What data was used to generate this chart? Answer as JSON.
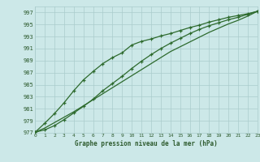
{
  "x": [
    0,
    1,
    2,
    3,
    4,
    5,
    6,
    7,
    8,
    9,
    10,
    11,
    12,
    13,
    14,
    15,
    16,
    17,
    18,
    19,
    20,
    21,
    22,
    23
  ],
  "line_upper": [
    977.1,
    978.6,
    980.2,
    982.0,
    984.0,
    985.8,
    987.2,
    988.5,
    989.5,
    990.3,
    991.6,
    992.2,
    992.6,
    993.1,
    993.5,
    994.0,
    994.5,
    994.9,
    995.4,
    995.8,
    996.2,
    996.5,
    996.8,
    997.2
  ],
  "line_straight": [
    977.1,
    977.8,
    978.7,
    979.6,
    980.5,
    981.5,
    982.5,
    983.5,
    984.5,
    985.5,
    986.5,
    987.5,
    988.5,
    989.5,
    990.5,
    991.3,
    992.1,
    992.9,
    993.7,
    994.4,
    995.1,
    995.7,
    996.4,
    997.2
  ],
  "line_lower": [
    977.1,
    977.5,
    978.2,
    979.2,
    980.3,
    981.4,
    982.6,
    984.0,
    985.2,
    986.4,
    987.7,
    988.9,
    990.0,
    991.0,
    991.9,
    992.7,
    993.5,
    994.2,
    994.8,
    995.3,
    995.8,
    996.2,
    996.7,
    997.2
  ],
  "line_color": "#2d6a2d",
  "bg_color": "#cce8e8",
  "grid_color": "#aacccc",
  "text_color": "#2d5a2d",
  "title": "Graphe pression niveau de la mer (hPa)",
  "ylim_min": 977,
  "ylim_max": 998,
  "yticks": [
    977,
    979,
    981,
    983,
    985,
    987,
    989,
    991,
    993,
    995,
    997
  ],
  "xlim_min": 0,
  "xlim_max": 23
}
